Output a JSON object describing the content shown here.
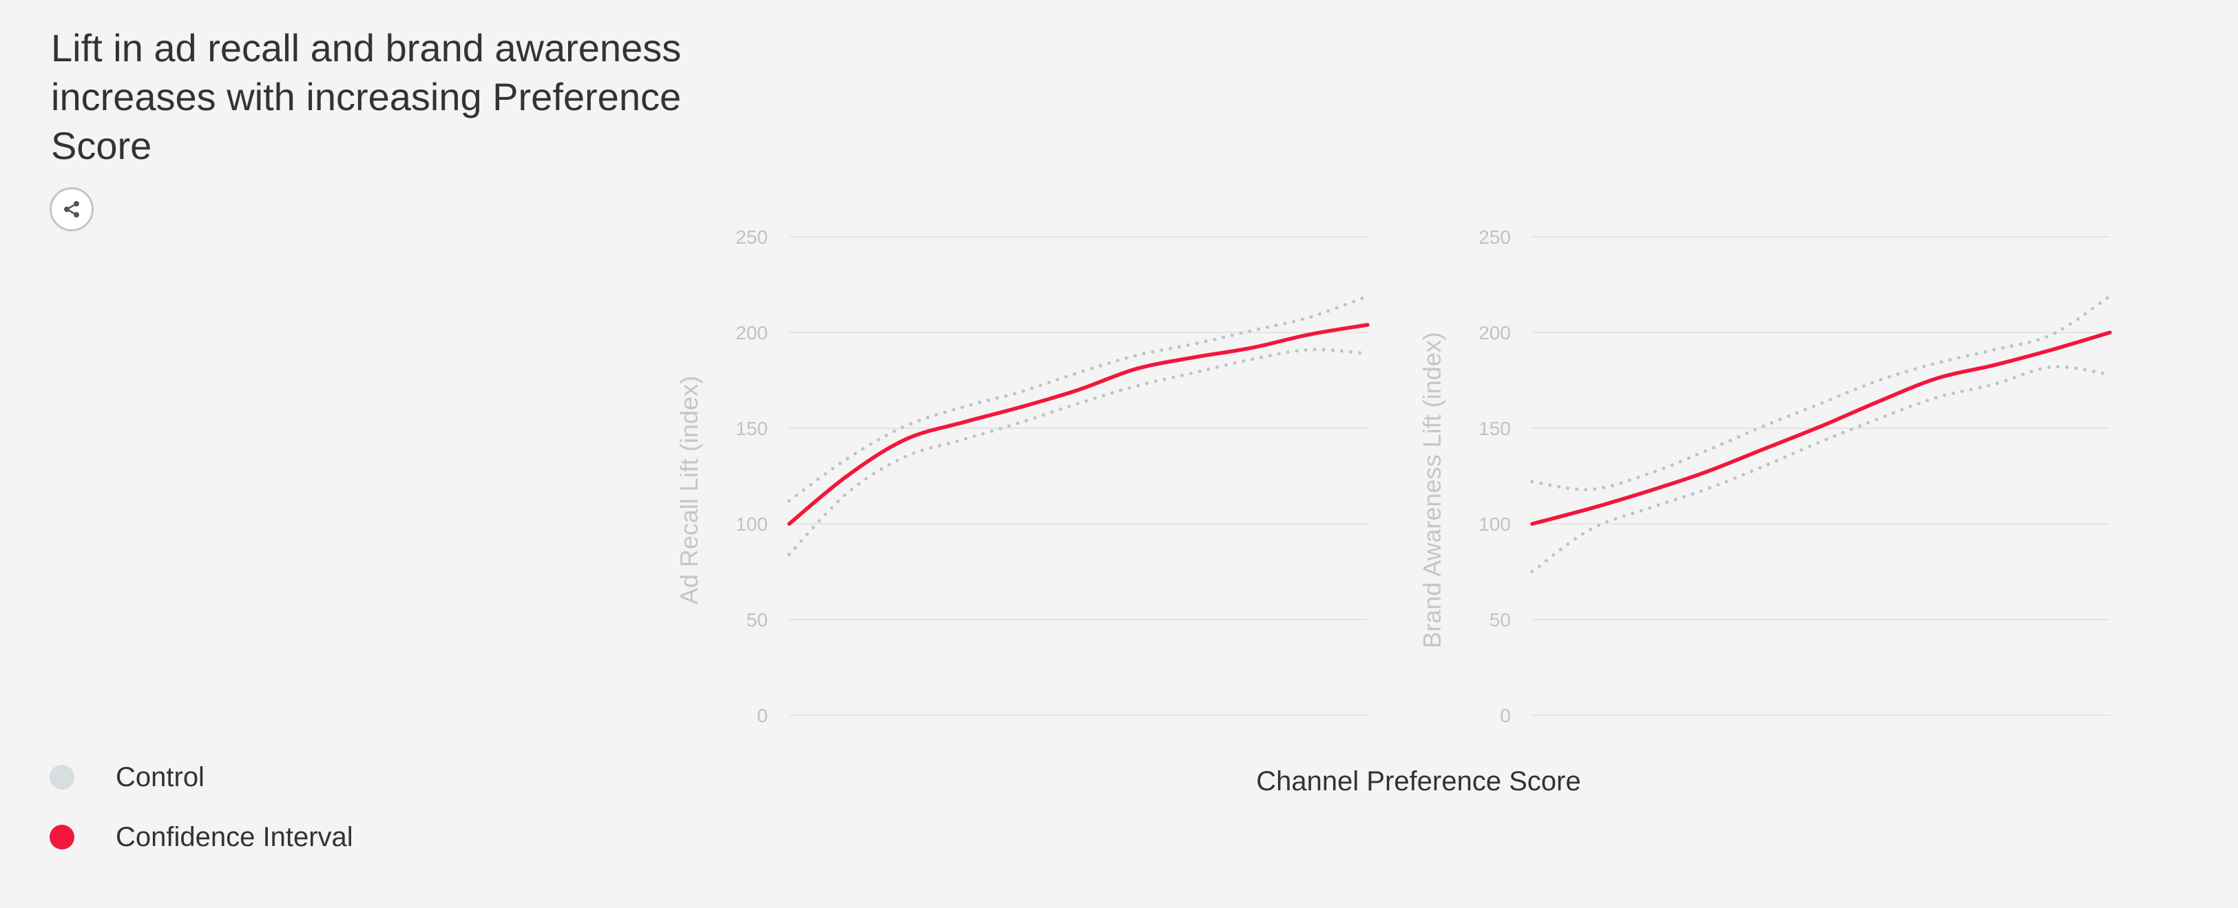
{
  "title": "Lift in ad recall and brand awareness increases with increasing Preference Score",
  "share": {
    "icon": "share-icon"
  },
  "legend": {
    "items": [
      {
        "label": "Control",
        "color": "#d7dee0"
      },
      {
        "label": "Confidence Interval",
        "color": "#f2163c"
      }
    ]
  },
  "colors": {
    "main_line": "#f2163c",
    "interval_dots": "#b8c6c9",
    "gridline": "#e4e4e4",
    "tick_label": "#c2c2c2"
  },
  "x_title": "Channel Preference Score",
  "chart_data": [
    {
      "type": "line",
      "title": "",
      "xlabel": "Channel Preference Score",
      "ylabel": "Ad Recall Lift (index)",
      "ylim": [
        0,
        250
      ],
      "yticks": [
        0,
        50,
        100,
        150,
        200,
        250
      ],
      "grid": true,
      "x": [
        0,
        0.1,
        0.2,
        0.3,
        0.4,
        0.5,
        0.6,
        0.7,
        0.8,
        0.9,
        1.0
      ],
      "series": [
        {
          "role": "main",
          "values": [
            100,
            125,
            144,
            153,
            161,
            170,
            181,
            187,
            192,
            199,
            204
          ]
        },
        {
          "role": "upper",
          "values": [
            112,
            134,
            151,
            161,
            169,
            179,
            188,
            194,
            201,
            208,
            219
          ]
        },
        {
          "role": "lower",
          "values": [
            84,
            116,
            135,
            144,
            153,
            163,
            172,
            179,
            186,
            191,
            189
          ]
        }
      ]
    },
    {
      "type": "line",
      "title": "",
      "xlabel": "Channel Preference Score",
      "ylabel": "Brand Awareness Lift (index)",
      "ylim": [
        0,
        250
      ],
      "yticks": [
        0,
        50,
        100,
        150,
        200,
        250
      ],
      "grid": true,
      "x": [
        0,
        0.1,
        0.2,
        0.3,
        0.4,
        0.5,
        0.6,
        0.7,
        0.8,
        0.9,
        1.0
      ],
      "series": [
        {
          "role": "main",
          "values": [
            100,
            108,
            117,
            127,
            139,
            151,
            164,
            176,
            183,
            191,
            200
          ]
        },
        {
          "role": "upper",
          "values": [
            122,
            118,
            126,
            138,
            151,
            163,
            175,
            184,
            191,
            199,
            219
          ]
        },
        {
          "role": "lower",
          "values": [
            75,
            97,
            108,
            118,
            130,
            143,
            155,
            166,
            173,
            182,
            178
          ]
        }
      ]
    }
  ]
}
